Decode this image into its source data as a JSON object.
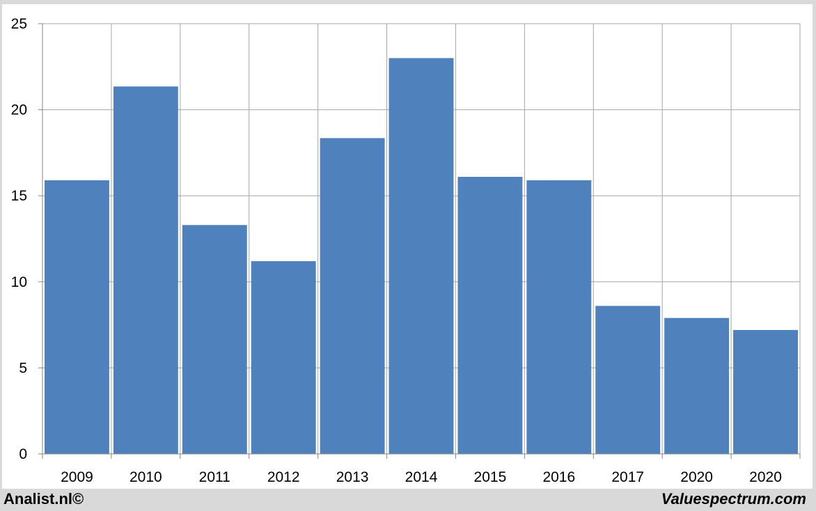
{
  "chart_data": {
    "type": "bar",
    "categories": [
      "2009",
      "2010",
      "2011",
      "2012",
      "2013",
      "2014",
      "2015",
      "2016",
      "2017",
      "2020",
      "2020"
    ],
    "values": [
      15.9,
      21.35,
      13.3,
      11.2,
      18.35,
      23.0,
      16.1,
      15.9,
      8.6,
      7.9,
      7.2
    ],
    "ylim": [
      0,
      25
    ],
    "yticks": [
      0,
      5,
      10,
      15,
      20,
      25
    ],
    "grid": true,
    "bar_color": "#4f81bd",
    "title": "",
    "xlabel": "",
    "ylabel": ""
  },
  "footer": {
    "left": "Analist.nl©",
    "right": "Valuespectrum.com"
  }
}
